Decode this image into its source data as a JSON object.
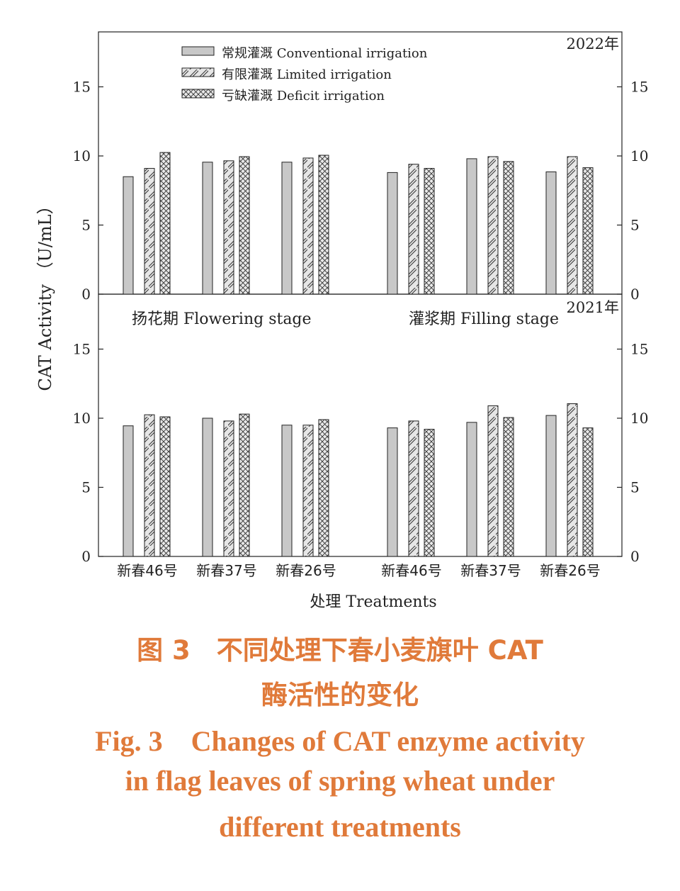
{
  "chart_data": {
    "type": "bar",
    "ylabel": "CAT Activity （U/mL）",
    "xlabel": "处理 Treatments",
    "ylim": [
      0,
      19
    ],
    "yticks": [
      0,
      5,
      10,
      15
    ],
    "legend_position": "top-left",
    "grid": false,
    "legend": [
      {
        "name": "常规灌溉  Conventional irrigation",
        "pattern": "solid"
      },
      {
        "name": "有限灌溉  Limited irrigation",
        "pattern": "hatch"
      },
      {
        "name": "亏缺灌溉  Deficit irrigation",
        "pattern": "crosshatch"
      }
    ],
    "stage_labels": [
      "扬花期  Flowering stage",
      "灌浆期  Filling stage"
    ],
    "categories": [
      "新春46号",
      "新春37号",
      "新春26号",
      "新春46号",
      "新春37号",
      "新春26号"
    ],
    "panels": [
      {
        "year_label": "2022年",
        "series": [
          {
            "values": [
              8.5,
              9.55,
              9.55,
              8.8,
              9.8,
              8.85
            ]
          },
          {
            "values": [
              9.1,
              9.65,
              9.85,
              9.4,
              9.95,
              9.95
            ]
          },
          {
            "values": [
              10.25,
              9.95,
              10.05,
              9.1,
              9.6,
              9.15
            ]
          }
        ]
      },
      {
        "year_label": "2021年",
        "series": [
          {
            "values": [
              9.45,
              10.0,
              9.5,
              9.3,
              9.7,
              10.2
            ]
          },
          {
            "values": [
              10.25,
              9.8,
              9.5,
              9.8,
              10.9,
              11.05
            ]
          },
          {
            "values": [
              10.1,
              10.3,
              9.9,
              9.2,
              10.05,
              9.3
            ]
          }
        ]
      }
    ]
  },
  "caption": {
    "cn_line1": "图 3　不同处理下春小麦旗叶 CAT",
    "cn_line2": "酶活性的变化",
    "en_line1": "Fig. 3　Changes of CAT enzyme activity",
    "en_line2": "in flag leaves of spring wheat under",
    "en_line3": "different treatments"
  }
}
